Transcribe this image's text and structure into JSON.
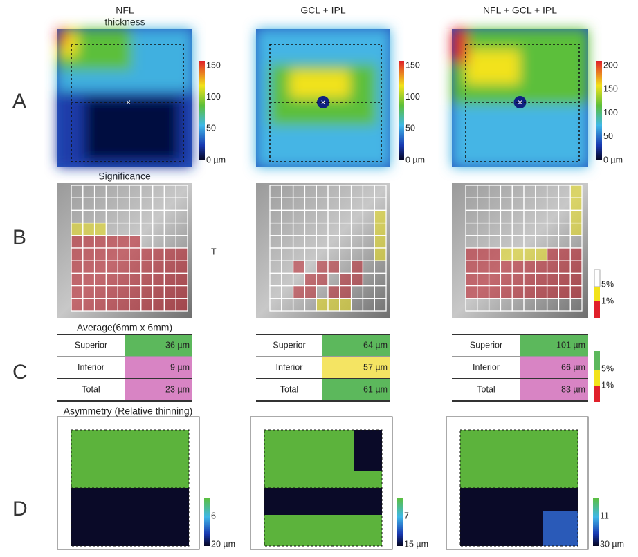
{
  "rows": [
    "A",
    "B",
    "C",
    "D"
  ],
  "significance_title": "Significance",
  "significance_marker": "T",
  "significance_legend": [
    "5%",
    "1%"
  ],
  "average_title": "Average(6mm x 6mm)",
  "average_legend": [
    "5%",
    "1%"
  ],
  "asymmetry_title": "Asymmetry (Relative thinning)",
  "columns": [
    {
      "header": "NFL",
      "header_sub": "thickness",
      "scale_labels": [
        "150",
        "100",
        "50",
        "0 µm"
      ],
      "table": [
        {
          "label": "Superior",
          "value": "36 µm",
          "color": "#5cb85c"
        },
        {
          "label": "Inferior",
          "value": "9 µm",
          "color": "#d884c4"
        },
        {
          "label": "Total",
          "value": "23 µm",
          "color": "#d884c4"
        }
      ],
      "asymmetry_labels": [
        "6",
        "20 µm"
      ]
    },
    {
      "header": "GCL + IPL",
      "scale_labels": [
        "150",
        "100",
        "50",
        "0 µm"
      ],
      "table": [
        {
          "label": "Superior",
          "value": "64 µm",
          "color": "#5cb85c"
        },
        {
          "label": "Inferior",
          "value": "57 µm",
          "color": "#f4e463"
        },
        {
          "label": "Total",
          "value": "61 µm",
          "color": "#5cb85c"
        }
      ],
      "asymmetry_labels": [
        "7",
        "15 µm"
      ]
    },
    {
      "header": "NFL + GCL + IPL",
      "scale_labels": [
        "200",
        "150",
        "100",
        "50",
        "0 µm"
      ],
      "table": [
        {
          "label": "Superior",
          "value": "101 µm",
          "color": "#5cb85c"
        },
        {
          "label": "Inferior",
          "value": "66 µm",
          "color": "#d884c4"
        },
        {
          "label": "Total",
          "value": "83 µm",
          "color": "#d884c4"
        }
      ],
      "asymmetry_labels": [
        "11",
        "30 µm"
      ]
    }
  ]
}
